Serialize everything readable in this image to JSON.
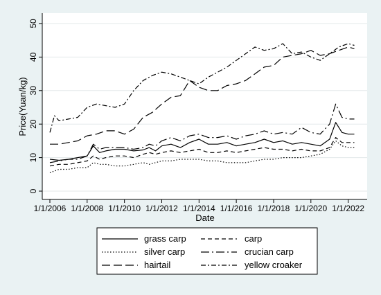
{
  "chart_data": {
    "type": "line",
    "xlabel": "Date",
    "ylabel": "Price(Yuan/kg)",
    "xlim": [
      "2006-01-01",
      "2022-07-01"
    ],
    "ylim": [
      0,
      50
    ],
    "yticks": [
      0,
      10,
      20,
      30,
      40,
      50
    ],
    "xticks": [
      "1/1/2006",
      "1/1/2008",
      "1/1/2010",
      "1/1/2012",
      "1/1/2014",
      "1/1/2016",
      "1/1/2018",
      "1/1/2020",
      "1/1/2022"
    ],
    "grid": true,
    "legend_position": "bottom",
    "series": [
      {
        "name": "grass carp",
        "dash": "solid",
        "x": [
          "2006-01-01",
          "2006-07-01",
          "2007-01-01",
          "2007-07-01",
          "2008-01-01",
          "2008-05-01",
          "2008-09-01",
          "2009-01-01",
          "2009-07-01",
          "2010-01-01",
          "2010-07-01",
          "2011-01-01",
          "2011-05-01",
          "2011-09-01",
          "2012-01-01",
          "2012-07-01",
          "2013-01-01",
          "2013-07-01",
          "2014-01-01",
          "2014-07-01",
          "2015-01-01",
          "2015-07-01",
          "2016-01-01",
          "2016-07-01",
          "2017-01-01",
          "2017-07-01",
          "2018-01-01",
          "2018-07-01",
          "2019-01-01",
          "2019-07-01",
          "2020-01-01",
          "2020-07-01",
          "2021-01-01",
          "2021-05-01",
          "2021-09-01",
          "2022-01-01",
          "2022-05-01"
        ],
        "y": [
          9.5,
          9.2,
          9.5,
          10.0,
          10.5,
          13.5,
          11.5,
          12.0,
          12.5,
          12.5,
          12.0,
          12.3,
          13.0,
          12.0,
          13.5,
          14.0,
          13.0,
          14.5,
          15.5,
          14.0,
          14.0,
          14.5,
          13.5,
          14.0,
          14.5,
          15.5,
          14.5,
          15.0,
          14.0,
          14.5,
          14.0,
          13.5,
          15.5,
          20.5,
          17.5,
          17.0,
          17.0
        ]
      },
      {
        "name": "carp",
        "dash": "dash",
        "x": [
          "2006-01-01",
          "2006-07-01",
          "2007-01-01",
          "2007-07-01",
          "2008-01-01",
          "2008-05-01",
          "2008-09-01",
          "2009-01-01",
          "2009-07-01",
          "2010-01-01",
          "2010-07-01",
          "2011-01-01",
          "2011-05-01",
          "2011-09-01",
          "2012-01-01",
          "2012-07-01",
          "2013-01-01",
          "2013-07-01",
          "2014-01-01",
          "2014-07-01",
          "2015-01-01",
          "2015-07-01",
          "2016-01-01",
          "2016-07-01",
          "2017-01-01",
          "2017-07-01",
          "2018-01-01",
          "2018-07-01",
          "2019-01-01",
          "2019-07-01",
          "2020-01-01",
          "2020-07-01",
          "2021-01-01",
          "2021-05-01",
          "2021-09-01",
          "2022-01-01",
          "2022-05-01"
        ],
        "y": [
          7.5,
          8.0,
          8.0,
          8.5,
          9.0,
          10.5,
          9.5,
          10.0,
          10.5,
          10.5,
          10.0,
          11.0,
          11.5,
          11.0,
          11.5,
          12.0,
          11.5,
          12.0,
          12.5,
          11.5,
          11.5,
          12.0,
          11.5,
          12.0,
          12.5,
          13.0,
          12.5,
          12.5,
          12.0,
          12.5,
          12.0,
          12.0,
          13.0,
          16.0,
          14.5,
          14.5,
          14.5
        ]
      },
      {
        "name": "silver carp",
        "dash": "dot",
        "x": [
          "2006-01-01",
          "2006-07-01",
          "2007-01-01",
          "2007-07-01",
          "2008-01-01",
          "2008-05-01",
          "2008-09-01",
          "2009-01-01",
          "2009-07-01",
          "2010-01-01",
          "2010-07-01",
          "2011-01-01",
          "2011-05-01",
          "2011-09-01",
          "2012-01-01",
          "2012-07-01",
          "2013-01-01",
          "2013-07-01",
          "2014-01-01",
          "2014-07-01",
          "2015-01-01",
          "2015-07-01",
          "2016-01-01",
          "2016-07-01",
          "2017-01-01",
          "2017-07-01",
          "2018-01-01",
          "2018-07-01",
          "2019-01-01",
          "2019-07-01",
          "2020-01-01",
          "2020-07-01",
          "2021-01-01",
          "2021-05-01",
          "2021-09-01",
          "2022-01-01",
          "2022-05-01"
        ],
        "y": [
          5.5,
          6.5,
          6.5,
          7.0,
          7.0,
          8.5,
          8.0,
          8.0,
          7.5,
          7.5,
          8.0,
          8.5,
          8.0,
          8.5,
          9.0,
          9.0,
          9.5,
          9.5,
          9.5,
          9.0,
          9.0,
          8.5,
          8.5,
          8.5,
          9.0,
          9.5,
          9.5,
          10.0,
          10.0,
          10.0,
          10.5,
          11.0,
          12.5,
          15.0,
          13.5,
          13.0,
          13.0
        ]
      },
      {
        "name": "crucian carp",
        "dash": "longdashdot",
        "x": [
          "2006-01-01",
          "2006-07-01",
          "2007-01-01",
          "2007-07-01",
          "2008-01-01",
          "2008-05-01",
          "2008-09-01",
          "2009-01-01",
          "2009-07-01",
          "2010-01-01",
          "2010-07-01",
          "2011-01-01",
          "2011-05-01",
          "2011-09-01",
          "2012-01-01",
          "2012-07-01",
          "2013-01-01",
          "2013-07-01",
          "2014-01-01",
          "2014-07-01",
          "2015-01-01",
          "2015-07-01",
          "2016-01-01",
          "2016-07-01",
          "2017-01-01",
          "2017-07-01",
          "2018-01-01",
          "2018-07-01",
          "2019-01-01",
          "2019-07-01",
          "2020-01-01",
          "2020-07-01",
          "2021-01-01",
          "2021-05-01",
          "2021-09-01",
          "2022-01-01",
          "2022-05-01"
        ],
        "y": [
          8.5,
          9.0,
          9.5,
          9.5,
          10.5,
          14.0,
          12.5,
          13.0,
          13.0,
          13.0,
          12.5,
          13.0,
          14.0,
          13.5,
          15.0,
          16.0,
          15.0,
          16.5,
          17.0,
          16.0,
          16.0,
          16.5,
          15.5,
          16.5,
          17.0,
          18.0,
          17.0,
          17.5,
          17.0,
          19.0,
          17.5,
          17.0,
          20.0,
          26.0,
          22.0,
          21.5,
          21.5
        ]
      },
      {
        "name": "hairtail",
        "dash": "longdash",
        "x": [
          "2006-01-01",
          "2006-07-01",
          "2007-01-01",
          "2007-07-01",
          "2008-01-01",
          "2008-07-01",
          "2009-01-01",
          "2009-07-01",
          "2010-01-01",
          "2010-07-01",
          "2011-01-01",
          "2011-07-01",
          "2012-01-01",
          "2012-07-01",
          "2013-01-01",
          "2013-07-01",
          "2014-01-01",
          "2014-07-01",
          "2015-01-01",
          "2015-07-01",
          "2016-01-01",
          "2016-07-01",
          "2017-01-01",
          "2017-07-01",
          "2018-01-01",
          "2018-07-01",
          "2019-01-01",
          "2019-07-01",
          "2020-01-01",
          "2020-07-01",
          "2021-01-01",
          "2021-07-01",
          "2022-01-01",
          "2022-05-01"
        ],
        "y": [
          14.0,
          14.0,
          14.5,
          15.0,
          16.5,
          17.0,
          18.0,
          18.0,
          17.0,
          18.5,
          22.0,
          23.5,
          26.0,
          28.0,
          28.5,
          33.0,
          31.0,
          30.0,
          30.0,
          31.5,
          32.0,
          33.0,
          35.0,
          37.0,
          37.5,
          40.0,
          40.5,
          41.0,
          42.0,
          40.5,
          41.0,
          42.0,
          43.0,
          42.5
        ]
      },
      {
        "name": "yellow croaker",
        "dash": "dashdot",
        "x": [
          "2006-01-01",
          "2006-04-01",
          "2006-07-01",
          "2007-01-01",
          "2007-07-01",
          "2008-01-01",
          "2008-07-01",
          "2009-01-01",
          "2009-07-01",
          "2010-01-01",
          "2010-07-01",
          "2011-01-01",
          "2011-07-01",
          "2012-01-01",
          "2012-07-01",
          "2013-01-01",
          "2013-07-01",
          "2014-01-01",
          "2014-07-01",
          "2015-01-01",
          "2015-07-01",
          "2016-01-01",
          "2016-07-01",
          "2017-01-01",
          "2017-07-01",
          "2018-01-01",
          "2018-07-01",
          "2019-01-01",
          "2019-07-01",
          "2020-01-01",
          "2020-07-01",
          "2021-01-01",
          "2021-07-01",
          "2022-01-01",
          "2022-05-01"
        ],
        "y": [
          17.5,
          22.5,
          21.0,
          21.5,
          22.0,
          25.0,
          26.0,
          25.5,
          25.0,
          26.0,
          30.0,
          33.0,
          34.5,
          35.5,
          35.0,
          34.0,
          33.0,
          32.0,
          34.0,
          35.5,
          37.0,
          39.0,
          41.0,
          43.0,
          42.0,
          42.5,
          44.0,
          41.0,
          41.5,
          40.0,
          39.0,
          41.0,
          43.0,
          44.0,
          43.5
        ]
      }
    ]
  }
}
